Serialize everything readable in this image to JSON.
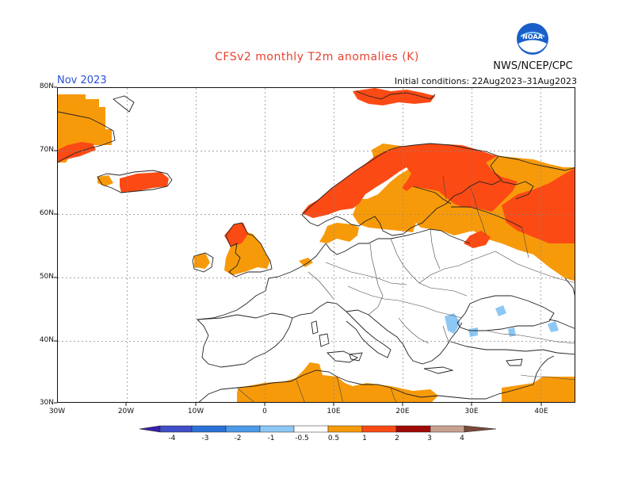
{
  "title": "CFSv2 monthly T2m anomalies (K)",
  "agency": "NWS/NCEP/CPC",
  "month": "Nov 2023",
  "initial_conditions": "Initial conditions: 22Aug2023–31Aug2023",
  "logo_text": "NOAA",
  "lat_labels": [
    "80N",
    "70N",
    "60N",
    "50N",
    "40N",
    "30N"
  ],
  "lon_labels": [
    "30W",
    "20W",
    "10W",
    "0",
    "10E",
    "20E",
    "30E",
    "40E"
  ],
  "colorbar": {
    "labels": [
      "-4",
      "-3",
      "-2",
      "-1",
      "-0.5",
      "0.5",
      "1",
      "2",
      "3",
      "4"
    ],
    "colors": [
      "#3a1fa8",
      "#3f4fc8",
      "#2b72d8",
      "#4a9ae8",
      "#8dc8f5",
      "#ffffff",
      "#f79a0a",
      "#fc4a14",
      "#d81a0c",
      "#a00a06",
      "#c8a090",
      "#7a4a3a"
    ]
  },
  "anomaly_colors": {
    "warm_0_5_1": "#f79a0a",
    "warm_1_2": "#fc4a14",
    "cool_-1_-0_5": "#8dc8f5"
  }
}
